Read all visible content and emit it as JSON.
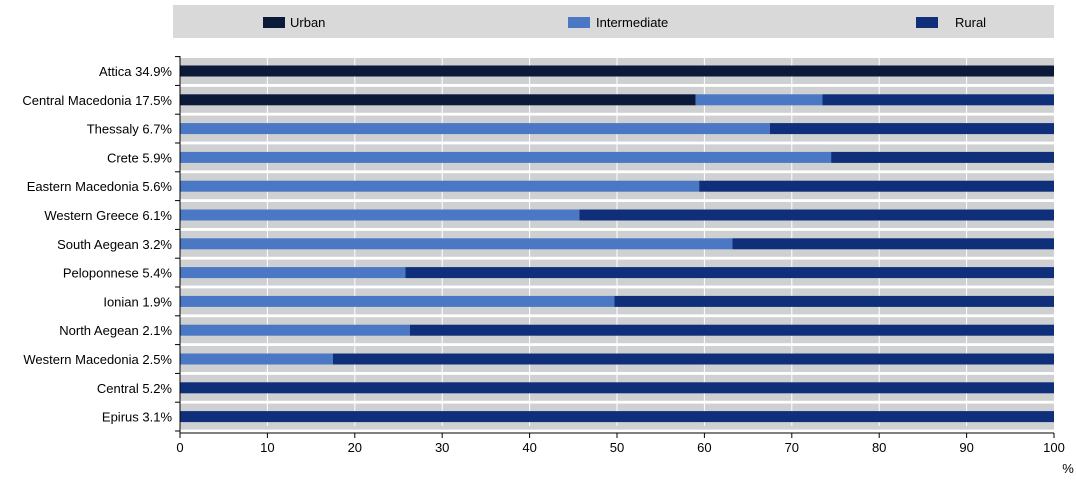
{
  "chart_data": {
    "type": "bar",
    "orientation": "horizontal",
    "stacked": true,
    "categories": [
      "Attica 34.9%",
      "Central Macedonia 17.5%",
      "Thessaly 6.7%",
      "Crete 5.9%",
      "Eastern Macedonia 5.6%",
      "Western Greece 6.1%",
      "South Aegean 3.2%",
      "Peloponnese 5.4%",
      "Ionian 1.9%",
      "North Aegean 2.1%",
      "Western Macedonia 2.5%",
      "Central 5.2%",
      "Epirus 3.1%"
    ],
    "series": [
      {
        "name": "Urban",
        "color": "#0b1a38",
        "values": [
          100,
          59,
          0,
          0,
          0,
          0,
          0,
          0,
          0,
          0,
          0,
          0,
          0
        ]
      },
      {
        "name": "Intermediate",
        "color": "#4a78c4",
        "values": [
          0,
          14.5,
          67.5,
          74.5,
          59.4,
          45.7,
          63.2,
          25.8,
          49.7,
          26.3,
          17.5,
          0,
          0
        ]
      },
      {
        "name": "Rural",
        "color": "#0f2f7a",
        "values": [
          0,
          26.5,
          32.5,
          25.5,
          40.6,
          54.3,
          36.8,
          74.2,
          50.3,
          73.7,
          82.5,
          100,
          100
        ]
      }
    ],
    "xticks": [
      "0",
      "10",
      "20",
      "30",
      "40",
      "50",
      "60",
      "70",
      "80",
      "90",
      "100"
    ],
    "xlim": [
      0,
      100
    ],
    "xunit": "%",
    "grid": true,
    "legend_position": "top",
    "track_color": "#cfd0d2",
    "legend_bg_color": "#d9d9d9",
    "grid_color": "#ffffff"
  }
}
